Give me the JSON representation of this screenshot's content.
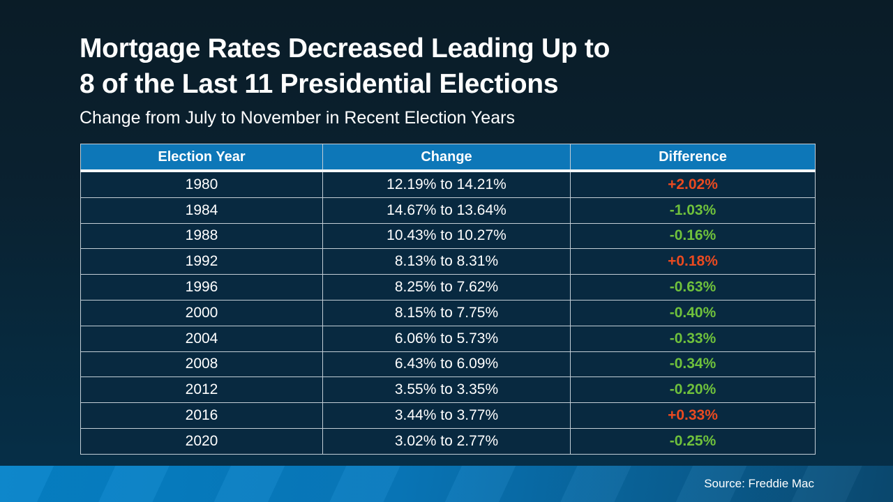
{
  "slide": {
    "title_line1": "Mortgage Rates Decreased Leading Up to",
    "title_line2": "8 of the Last 11 Presidential Elections",
    "subtitle": "Change from July to November in Recent Election Years",
    "source": "Source: Freddie Mac"
  },
  "colors": {
    "background_top": "#0a1c27",
    "background_bottom": "#05304a",
    "header_blue": "#0d77b8",
    "row_bg": "#082940",
    "border_light": "#c3ced6",
    "increase_color": "#ea4a20",
    "decrease_color": "#6fc13c",
    "footer_left": "#0583c9",
    "footer_right": "#0a4a72",
    "text_white": "#ffffff"
  },
  "chart_data": {
    "type": "table",
    "title": "Mortgage Rates Decreased Leading Up to 8 of the Last 11 Presidential Elections",
    "subtitle": "Change from July to November in Recent Election Years",
    "columns": [
      "Election Year",
      "Change",
      "Difference"
    ],
    "rows": [
      {
        "year": "1980",
        "change": "12.19% to 14.21%",
        "difference": "+2.02%",
        "direction": "up"
      },
      {
        "year": "1984",
        "change": "14.67% to 13.64%",
        "difference": "-1.03%",
        "direction": "down"
      },
      {
        "year": "1988",
        "change": "10.43% to 10.27%",
        "difference": "-0.16%",
        "direction": "down"
      },
      {
        "year": "1992",
        "change": "8.13% to 8.31%",
        "difference": "+0.18%",
        "direction": "up"
      },
      {
        "year": "1996",
        "change": "8.25% to 7.62%",
        "difference": "-0.63%",
        "direction": "down"
      },
      {
        "year": "2000",
        "change": "8.15% to 7.75%",
        "difference": "-0.40%",
        "direction": "down"
      },
      {
        "year": "2004",
        "change": "6.06% to 5.73%",
        "difference": "-0.33%",
        "direction": "down"
      },
      {
        "year": "2008",
        "change": "6.43% to 6.09%",
        "difference": "-0.34%",
        "direction": "down"
      },
      {
        "year": "2012",
        "change": "3.55% to 3.35%",
        "difference": "-0.20%",
        "direction": "down"
      },
      {
        "year": "2016",
        "change": "3.44% to 3.77%",
        "difference": "+0.33%",
        "direction": "up"
      },
      {
        "year": "2020",
        "change": "3.02% to 2.77%",
        "difference": "-0.25%",
        "direction": "down"
      }
    ],
    "source": "Source: Freddie Mac"
  }
}
